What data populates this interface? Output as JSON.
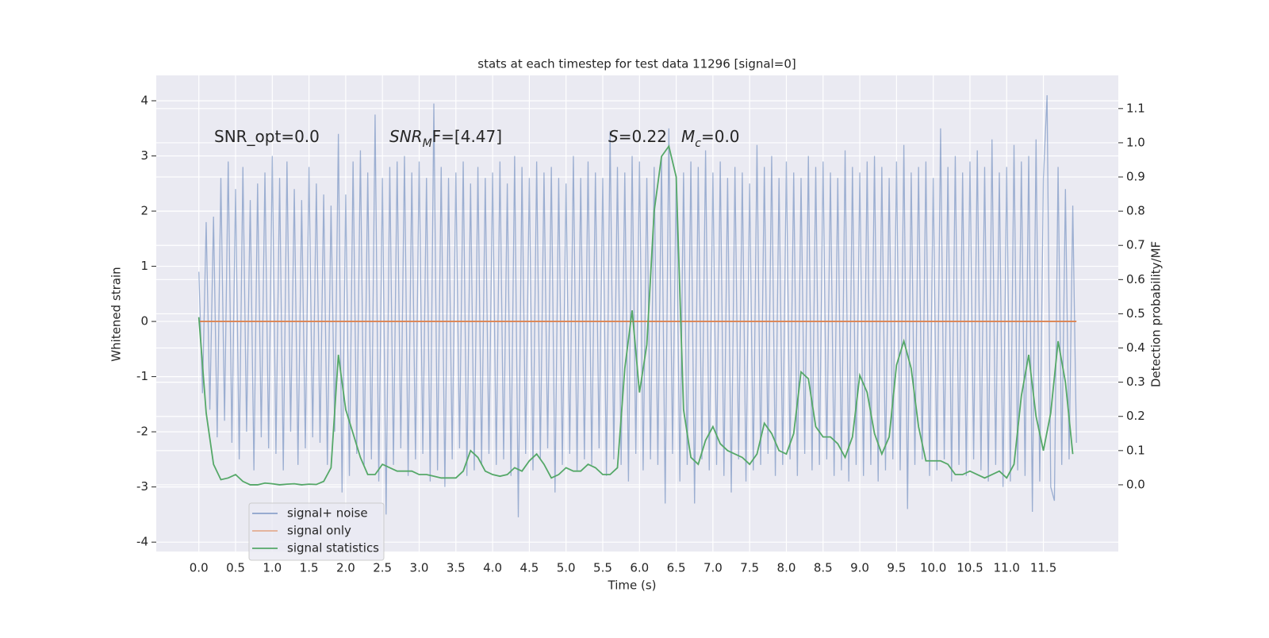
{
  "chart_data": {
    "type": "line",
    "title": "stats at each timestep for test data 11296 [signal=0]",
    "xlabel": "Time (s)",
    "ylabel": "Whitened strain",
    "y2label": "Detection probability/MF",
    "annotations": [
      {
        "text": "SNR_opt=0.0"
      },
      {
        "base": "SNR",
        "sub": "M",
        "tail": "F=[4.47]"
      },
      {
        "base": "S",
        "tail": "=0.22"
      },
      {
        "base": "M",
        "sub": "c",
        "tail": "=0.0"
      }
    ],
    "xlim": [
      -0.58,
      12.52
    ],
    "ylim": [
      -4.17,
      4.46
    ],
    "y2lim": [
      -0.195,
      1.197
    ],
    "xticks": [
      {
        "value": 0,
        "label": "0.0"
      },
      0.5,
      {
        "value": 1,
        "label": "1.0"
      },
      1.5,
      {
        "value": 2,
        "label": "2.0"
      },
      2.5,
      {
        "value": 3,
        "label": "3.0"
      },
      3.5,
      {
        "value": 4,
        "label": "4.0"
      },
      4.5,
      {
        "value": 5,
        "label": "5.0"
      },
      5.5,
      {
        "value": 6,
        "label": "6.0"
      },
      6.5,
      {
        "value": 7,
        "label": "7.0"
      },
      7.5,
      {
        "value": 8,
        "label": "8.0"
      },
      8.5,
      {
        "value": 9,
        "label": "9.0"
      },
      9.5,
      {
        "value": 10,
        "label": "10.0"
      },
      10.5,
      {
        "value": 11,
        "label": "11.0"
      },
      11.5
    ],
    "yticks": [
      -4,
      -3,
      -2,
      -1,
      0,
      1,
      2,
      3,
      4
    ],
    "y2ticks": [
      {
        "value": 0,
        "label": "0.0"
      },
      0.1,
      0.2,
      0.3,
      0.4,
      0.5,
      0.6,
      0.7,
      0.8,
      0.9,
      {
        "value": 1,
        "label": "1.0"
      },
      1.1
    ],
    "grid": true,
    "legend_loc": "lower left",
    "series": [
      {
        "name": "signal+ noise",
        "color": "#4c72b0",
        "x": [
          0,
          0.05,
          0.1,
          0.15,
          0.2,
          0.25,
          0.3,
          0.35,
          0.4,
          0.45,
          0.5,
          0.55,
          0.6,
          0.65,
          0.7,
          0.75,
          0.8,
          0.85,
          0.9,
          0.95,
          1,
          1.05,
          1.1,
          1.15,
          1.2,
          1.25,
          1.3,
          1.35,
          1.4,
          1.45,
          1.5,
          1.55,
          1.6,
          1.65,
          1.7,
          1.75,
          1.8,
          1.85,
          1.9,
          1.95,
          2,
          2.05,
          2.1,
          2.15,
          2.2,
          2.25,
          2.3,
          2.35,
          2.4,
          2.45,
          2.5,
          2.55,
          2.6,
          2.65,
          2.7,
          2.75,
          2.8,
          2.85,
          2.9,
          2.95,
          3,
          3.05,
          3.1,
          3.15,
          3.2,
          3.25,
          3.3,
          3.35,
          3.4,
          3.45,
          3.5,
          3.55,
          3.6,
          3.65,
          3.7,
          3.75,
          3.8,
          3.85,
          3.9,
          3.95,
          4,
          4.05,
          4.1,
          4.15,
          4.2,
          4.25,
          4.3,
          4.35,
          4.4,
          4.45,
          4.5,
          4.55,
          4.6,
          4.65,
          4.7,
          4.75,
          4.8,
          4.85,
          4.9,
          4.95,
          5,
          5.05,
          5.1,
          5.15,
          5.2,
          5.25,
          5.3,
          5.35,
          5.4,
          5.45,
          5.5,
          5.55,
          5.6,
          5.65,
          5.7,
          5.75,
          5.8,
          5.85,
          5.9,
          5.95,
          6,
          6.05,
          6.1,
          6.15,
          6.2,
          6.25,
          6.3,
          6.35,
          6.4,
          6.45,
          6.5,
          6.55,
          6.6,
          6.65,
          6.7,
          6.75,
          6.8,
          6.85,
          6.9,
          6.95,
          7,
          7.05,
          7.1,
          7.15,
          7.2,
          7.25,
          7.3,
          7.35,
          7.4,
          7.45,
          7.5,
          7.55,
          7.6,
          7.65,
          7.7,
          7.75,
          7.8,
          7.85,
          7.9,
          7.95,
          8,
          8.05,
          8.1,
          8.15,
          8.2,
          8.25,
          8.3,
          8.35,
          8.4,
          8.45,
          8.5,
          8.55,
          8.6,
          8.65,
          8.7,
          8.75,
          8.8,
          8.85,
          8.9,
          8.95,
          9,
          9.05,
          9.1,
          9.15,
          9.2,
          9.25,
          9.3,
          9.35,
          9.4,
          9.45,
          9.5,
          9.55,
          9.6,
          9.65,
          9.7,
          9.75,
          9.8,
          9.85,
          9.9,
          9.95,
          10,
          10.05,
          10.1,
          10.15,
          10.2,
          10.25,
          10.3,
          10.35,
          10.4,
          10.45,
          10.5,
          10.55,
          10.6,
          10.65,
          10.7,
          10.75,
          10.8,
          10.85,
          10.9,
          10.95,
          11,
          11.05,
          11.1,
          11.15,
          11.2,
          11.25,
          11.3,
          11.35,
          11.4,
          11.45,
          11.5,
          11.55,
          11.6,
          11.65,
          11.7,
          11.75,
          11.8,
          11.85,
          11.9,
          11.95
        ],
        "values": [
          0.9,
          -1.3,
          1.8,
          -1.6,
          1.9,
          -2.1,
          2.6,
          -1.8,
          2.9,
          -2.2,
          2.4,
          -2.5,
          2.8,
          -2.0,
          2.2,
          -2.7,
          2.5,
          -2.1,
          2.7,
          -2.3,
          3.0,
          -2.4,
          2.6,
          -2.7,
          2.9,
          -2.0,
          2.4,
          -2.6,
          2.2,
          -2.3,
          2.8,
          -2.1,
          2.5,
          -2.2,
          2.3,
          -2.6,
          2.1,
          -2.0,
          3.4,
          -3.1,
          2.3,
          -2.8,
          2.9,
          -2.4,
          3.1,
          -2.6,
          2.7,
          -2.5,
          3.75,
          -2.9,
          2.6,
          -3.5,
          2.8,
          -2.6,
          2.9,
          -2.3,
          3.0,
          -2.8,
          2.7,
          -2.5,
          2.9,
          -2.4,
          2.6,
          -2.9,
          3.95,
          -2.7,
          2.8,
          -3.0,
          2.6,
          -2.5,
          2.7,
          -2.3,
          2.9,
          -2.8,
          2.5,
          -2.7,
          2.8,
          -2.6,
          2.6,
          -2.4,
          2.7,
          -2.6,
          2.9,
          -2.5,
          2.5,
          -2.8,
          3.0,
          -3.55,
          2.8,
          -2.4,
          2.6,
          -2.7,
          2.9,
          -2.5,
          2.7,
          -2.3,
          2.8,
          -3.1,
          2.6,
          -2.6,
          2.5,
          -2.4,
          3.0,
          -2.7,
          2.6,
          -2.5,
          2.9,
          -2.6,
          2.7,
          -2.3,
          2.6,
          -2.8,
          3.45,
          -2.5,
          2.8,
          -2.6,
          2.7,
          -2.9,
          3.0,
          -2.4,
          2.9,
          -2.7,
          2.6,
          -2.5,
          2.8,
          -2.6,
          3.0,
          -3.3,
          3.5,
          -2.4,
          2.6,
          -2.9,
          2.7,
          -2.6,
          2.9,
          -3.3,
          2.8,
          -2.5,
          3.1,
          -2.7,
          2.7,
          -2.6,
          2.9,
          -2.8,
          2.6,
          -3.1,
          2.8,
          -2.5,
          2.7,
          -2.9,
          2.5,
          -2.7,
          3.2,
          -2.6,
          2.8,
          -2.4,
          3.0,
          -2.8,
          2.6,
          -2.6,
          2.9,
          -2.5,
          2.7,
          -2.8,
          2.6,
          -2.4,
          3.0,
          -2.7,
          2.8,
          -2.6,
          2.9,
          -2.5,
          2.7,
          -2.8,
          2.6,
          -2.7,
          3.1,
          -2.9,
          2.8,
          -2.6,
          2.7,
          -2.8,
          2.9,
          -2.6,
          3.0,
          -2.9,
          2.8,
          -2.7,
          2.6,
          -2.5,
          2.9,
          -2.7,
          3.2,
          -3.4,
          2.7,
          -2.6,
          2.8,
          -2.5,
          2.9,
          -2.8,
          2.6,
          -2.7,
          3.5,
          -2.5,
          2.8,
          -2.9,
          3.0,
          -2.6,
          2.7,
          -2.8,
          2.9,
          -2.5,
          3.1,
          -2.7,
          2.8,
          -2.9,
          3.3,
          -2.6,
          2.7,
          -3.0,
          2.8,
          -2.9,
          3.2,
          -2.7,
          2.9,
          -2.8,
          3.0,
          -3.45,
          3.3,
          -2.9,
          2.6,
          4.1,
          -3.0,
          -3.25,
          2.8,
          -2.6,
          2.4,
          -2.5,
          2.1,
          -2.2
        ]
      },
      {
        "name": "signal only",
        "color": "#dd8452",
        "x": [
          0,
          11.95
        ],
        "values": [
          0,
          0
        ]
      },
      {
        "name": "signal statistics",
        "color": "#55a868",
        "axis": "y2",
        "x": [
          0,
          0.1,
          0.2,
          0.3,
          0.4,
          0.5,
          0.6,
          0.7,
          0.8,
          0.9,
          1,
          1.1,
          1.2,
          1.3,
          1.4,
          1.5,
          1.6,
          1.7,
          1.8,
          1.9,
          2,
          2.1,
          2.2,
          2.3,
          2.4,
          2.5,
          2.6,
          2.7,
          2.8,
          2.9,
          3,
          3.1,
          3.2,
          3.3,
          3.4,
          3.5,
          3.6,
          3.7,
          3.8,
          3.9,
          4,
          4.1,
          4.2,
          4.3,
          4.4,
          4.5,
          4.6,
          4.7,
          4.8,
          4.9,
          5,
          5.1,
          5.2,
          5.3,
          5.4,
          5.5,
          5.6,
          5.7,
          5.8,
          5.9,
          6,
          6.1,
          6.2,
          6.3,
          6.4,
          6.5,
          6.6,
          6.7,
          6.8,
          6.9,
          7,
          7.1,
          7.2,
          7.3,
          7.4,
          7.5,
          7.6,
          7.7,
          7.8,
          7.9,
          8,
          8.1,
          8.2,
          8.3,
          8.4,
          8.5,
          8.6,
          8.7,
          8.8,
          8.9,
          9,
          9.1,
          9.2,
          9.3,
          9.4,
          9.5,
          9.6,
          9.7,
          9.8,
          9.9,
          10,
          10.1,
          10.2,
          10.3,
          10.4,
          10.5,
          10.6,
          10.7,
          10.8,
          10.9,
          11,
          11.1,
          11.2,
          11.3,
          11.4,
          11.5,
          11.6,
          11.7,
          11.8,
          11.9
        ],
        "values": [
          0.49,
          0.21,
          0.06,
          0.015,
          0.02,
          0.03,
          0.01,
          0,
          0,
          0.005,
          0.003,
          0,
          0.002,
          0.003,
          0,
          0.002,
          0.001,
          0.01,
          0.05,
          0.38,
          0.22,
          0.15,
          0.08,
          0.03,
          0.03,
          0.06,
          0.05,
          0.04,
          0.04,
          0.04,
          0.03,
          0.03,
          0.025,
          0.02,
          0.02,
          0.02,
          0.04,
          0.1,
          0.08,
          0.04,
          0.03,
          0.025,
          0.03,
          0.05,
          0.04,
          0.07,
          0.09,
          0.06,
          0.02,
          0.03,
          0.05,
          0.04,
          0.04,
          0.06,
          0.05,
          0.03,
          0.03,
          0.05,
          0.34,
          0.51,
          0.27,
          0.41,
          0.8,
          0.96,
          0.99,
          0.9,
          0.22,
          0.08,
          0.06,
          0.13,
          0.17,
          0.12,
          0.1,
          0.09,
          0.08,
          0.06,
          0.09,
          0.18,
          0.15,
          0.1,
          0.09,
          0.15,
          0.33,
          0.31,
          0.17,
          0.14,
          0.14,
          0.12,
          0.08,
          0.14,
          0.32,
          0.27,
          0.15,
          0.09,
          0.14,
          0.35,
          0.42,
          0.34,
          0.17,
          0.07,
          0.07,
          0.07,
          0.06,
          0.03,
          0.03,
          0.04,
          0.03,
          0.02,
          0.03,
          0.04,
          0.02,
          0.06,
          0.26,
          0.38,
          0.2,
          0.1,
          0.21,
          0.42,
          0.3,
          0.09
        ]
      }
    ]
  }
}
